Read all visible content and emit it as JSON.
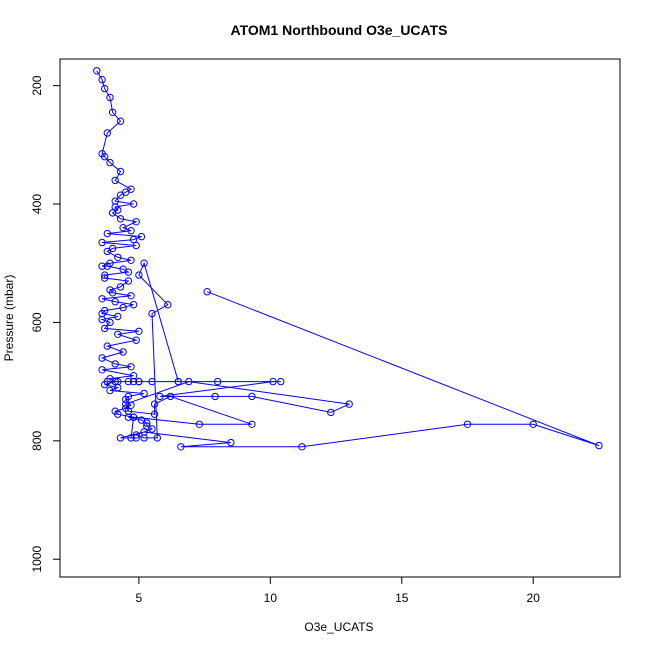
{
  "chart_data": {
    "type": "line",
    "title": "ATOM1 Northbound O3e_UCATS",
    "xlabel": "O3e_UCATS",
    "ylabel": "Pressure (mbar)",
    "xlim": [
      2,
      23.3
    ],
    "ylim": [
      1030,
      155
    ],
    "y_axis_reversed": true,
    "xticks": [
      5,
      10,
      15,
      20
    ],
    "yticks": [
      200,
      400,
      600,
      800,
      1000
    ],
    "xtick_labels": [
      "5",
      "10",
      "15",
      "20"
    ],
    "ytick_labels": [
      "200",
      "400",
      "600",
      "800",
      "1000"
    ],
    "grid": false,
    "marker": "open-circle",
    "colors": {
      "series": "#0000ff"
    },
    "series": [
      {
        "x": [
          3.4,
          3.6,
          3.7,
          3.9,
          4.0,
          4.3,
          3.8,
          3.6,
          3.7,
          3.9,
          4.3,
          4.1,
          4.7,
          4.5,
          4.3,
          4.1,
          4.8,
          4.1,
          4.2,
          4.0,
          4.3,
          4.9,
          4.4,
          4.7,
          3.8,
          5.1,
          4.8,
          3.6,
          4.9,
          4.0,
          3.8,
          4.2,
          4.7,
          3.9,
          3.6,
          3.8,
          4.4,
          4.6,
          3.7,
          3.7,
          4.6,
          4.3,
          3.9,
          4.0,
          4.7,
          3.6,
          4.1,
          4.8,
          4.4,
          3.7,
          3.6,
          4.2,
          3.6,
          3.9,
          3.7,
          5.0,
          4.2,
          4.9,
          3.8,
          4.4,
          3.6,
          4.1,
          4.7,
          3.6,
          4.8,
          3.9,
          4.1,
          3.7,
          4.2,
          3.9,
          5.2,
          4.6,
          4.5,
          4.7,
          4.5,
          4.1,
          4.2,
          4.8,
          4.6,
          5.1,
          5.3,
          5.3,
          5.5,
          4.9,
          5.2,
          5.7,
          5.5,
          6.1,
          5.0,
          5.2,
          6.5,
          5.0,
          3.8,
          4.1,
          4.2,
          4.6,
          4.8,
          5.0,
          5.5,
          6.5,
          8.0,
          10.4,
          10.1,
          5.8,
          7.9,
          9.3,
          12.3,
          13.0,
          6.9,
          4.5,
          4.6,
          5.6,
          5.6,
          6.2,
          9.3,
          7.3,
          4.8,
          4.7,
          4.9,
          4.3,
          5.2,
          8.5,
          6.6,
          11.2,
          17.5,
          20.0,
          22.5,
          7.6
        ],
        "y": [
          175,
          190,
          205,
          220,
          245,
          260,
          280,
          315,
          320,
          330,
          345,
          360,
          375,
          380,
          385,
          395,
          400,
          405,
          410,
          415,
          425,
          430,
          440,
          445,
          450,
          455,
          460,
          465,
          470,
          475,
          480,
          490,
          495,
          500,
          505,
          505,
          510,
          515,
          520,
          525,
          530,
          540,
          545,
          550,
          555,
          560,
          565,
          570,
          575,
          580,
          585,
          590,
          595,
          600,
          610,
          615,
          620,
          630,
          640,
          650,
          660,
          670,
          675,
          680,
          690,
          695,
          700,
          705,
          710,
          715,
          720,
          725,
          730,
          740,
          745,
          750,
          755,
          760,
          760,
          765,
          770,
          775,
          780,
          790,
          795,
          795,
          585,
          570,
          520,
          500,
          700,
          700,
          700,
          700,
          700,
          700,
          700,
          700,
          700,
          700,
          700,
          700,
          700,
          725,
          725,
          725,
          752,
          738,
          700,
          738,
          750,
          755,
          738,
          725,
          772,
          772,
          760,
          795,
          795,
          795,
          785,
          803,
          810,
          810,
          772,
          772,
          808,
          548
        ]
      }
    ]
  }
}
